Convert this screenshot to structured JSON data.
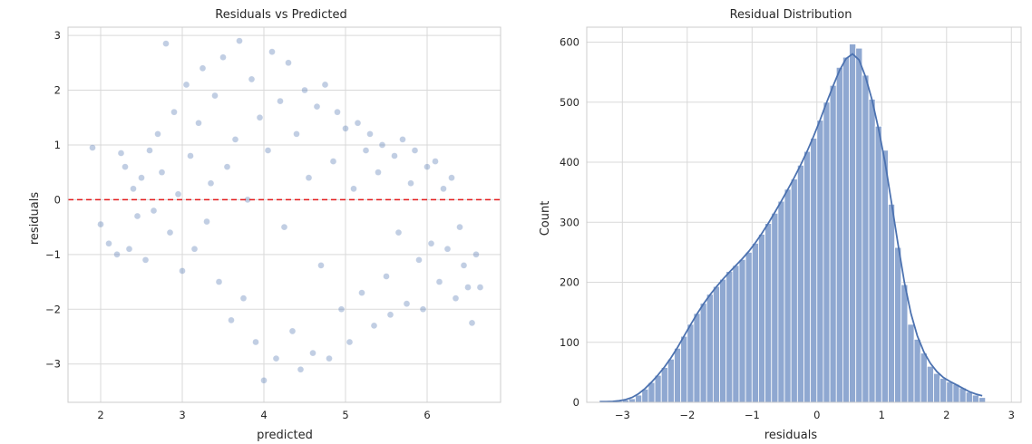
{
  "chart_data": [
    {
      "type": "scatter",
      "title": "Residuals vs Predicted",
      "xlabel": "predicted",
      "ylabel": "residuals",
      "xlim": [
        1.6,
        6.9
      ],
      "ylim": [
        -3.7,
        3.15
      ],
      "xticks": [
        2,
        3,
        4,
        5,
        6
      ],
      "yticks": [
        -3,
        -2,
        -1,
        0,
        1,
        2,
        3
      ],
      "xtick_labels": [
        "2",
        "3",
        "4",
        "5",
        "6"
      ],
      "ytick_labels": [
        "−3",
        "−2",
        "−1",
        "0",
        "1",
        "2",
        "3"
      ],
      "reference_line": {
        "y": 0,
        "style": "dashed",
        "color": "#e31a1c"
      },
      "point_color": "#4c72b0",
      "grid": true,
      "points": [
        [
          1.9,
          0.95
        ],
        [
          2.0,
          -0.45
        ],
        [
          2.1,
          -0.8
        ],
        [
          2.2,
          -1.0
        ],
        [
          2.25,
          0.85
        ],
        [
          2.3,
          0.6
        ],
        [
          2.35,
          -0.9
        ],
        [
          2.4,
          0.2
        ],
        [
          2.45,
          -0.3
        ],
        [
          2.5,
          0.4
        ],
        [
          2.55,
          -1.1
        ],
        [
          2.6,
          0.9
        ],
        [
          2.65,
          -0.2
        ],
        [
          2.7,
          1.2
        ],
        [
          2.75,
          0.5
        ],
        [
          2.8,
          2.85
        ],
        [
          2.85,
          -0.6
        ],
        [
          2.9,
          1.6
        ],
        [
          2.95,
          0.1
        ],
        [
          3.0,
          -1.3
        ],
        [
          3.05,
          2.1
        ],
        [
          3.1,
          0.8
        ],
        [
          3.15,
          -0.9
        ],
        [
          3.2,
          1.4
        ],
        [
          3.25,
          2.4
        ],
        [
          3.3,
          -0.4
        ],
        [
          3.35,
          0.3
        ],
        [
          3.4,
          1.9
        ],
        [
          3.45,
          -1.5
        ],
        [
          3.5,
          2.6
        ],
        [
          3.55,
          0.6
        ],
        [
          3.6,
          -2.2
        ],
        [
          3.65,
          1.1
        ],
        [
          3.7,
          2.9
        ],
        [
          3.75,
          -1.8
        ],
        [
          3.8,
          0.0
        ],
        [
          3.85,
          2.2
        ],
        [
          3.9,
          -2.6
        ],
        [
          3.95,
          1.5
        ],
        [
          4.0,
          -3.3
        ],
        [
          4.05,
          0.9
        ],
        [
          4.1,
          2.7
        ],
        [
          4.15,
          -2.9
        ],
        [
          4.2,
          1.8
        ],
        [
          4.25,
          -0.5
        ],
        [
          4.3,
          2.5
        ],
        [
          4.35,
          -2.4
        ],
        [
          4.4,
          1.2
        ],
        [
          4.45,
          -3.1
        ],
        [
          4.5,
          2.0
        ],
        [
          4.55,
          0.4
        ],
        [
          4.6,
          -2.8
        ],
        [
          4.65,
          1.7
        ],
        [
          4.7,
          -1.2
        ],
        [
          4.75,
          2.1
        ],
        [
          4.8,
          -2.9
        ],
        [
          4.85,
          0.7
        ],
        [
          4.9,
          1.6
        ],
        [
          4.95,
          -2.0
        ],
        [
          5.0,
          1.3
        ],
        [
          5.05,
          -2.6
        ],
        [
          5.1,
          0.2
        ],
        [
          5.15,
          1.4
        ],
        [
          5.2,
          -1.7
        ],
        [
          5.25,
          0.9
        ],
        [
          5.3,
          1.2
        ],
        [
          5.35,
          -2.3
        ],
        [
          5.4,
          0.5
        ],
        [
          5.45,
          1.0
        ],
        [
          5.5,
          -1.4
        ],
        [
          5.55,
          -2.1
        ],
        [
          5.6,
          0.8
        ],
        [
          5.65,
          -0.6
        ],
        [
          5.7,
          1.1
        ],
        [
          5.75,
          -1.9
        ],
        [
          5.8,
          0.3
        ],
        [
          5.85,
          0.9
        ],
        [
          5.9,
          -1.1
        ],
        [
          5.95,
          -2.0
        ],
        [
          6.0,
          0.6
        ],
        [
          6.05,
          -0.8
        ],
        [
          6.1,
          0.7
        ],
        [
          6.15,
          -1.5
        ],
        [
          6.2,
          0.2
        ],
        [
          6.25,
          -0.9
        ],
        [
          6.3,
          0.4
        ],
        [
          6.35,
          -1.8
        ],
        [
          6.4,
          -0.5
        ],
        [
          6.45,
          -1.2
        ],
        [
          6.5,
          -1.6
        ],
        [
          6.55,
          -2.25
        ],
        [
          6.6,
          -1.0
        ],
        [
          6.65,
          -1.6
        ]
      ]
    },
    {
      "type": "bar",
      "subtype": "histogram",
      "title": "Residual Distribution",
      "xlabel": "residuals",
      "ylabel": "Count",
      "xlim": [
        -3.55,
        3.15
      ],
      "ylim": [
        0,
        625
      ],
      "xticks": [
        -3,
        -2,
        -1,
        0,
        1,
        2,
        3
      ],
      "yticks": [
        0,
        100,
        200,
        300,
        400,
        500,
        600
      ],
      "xtick_labels": [
        "−3",
        "−2",
        "−1",
        "0",
        "1",
        "2",
        "3"
      ],
      "ytick_labels": [
        "0",
        "100",
        "200",
        "300",
        "400",
        "500",
        "600"
      ],
      "bin_start": -3.4,
      "bin_width": 0.1,
      "bar_color": "#8fa8d1",
      "line_color": "#4c72b0",
      "grid": true,
      "counts": [
        1,
        1,
        1,
        2,
        4,
        6,
        12,
        22,
        33,
        45,
        58,
        72,
        90,
        110,
        130,
        148,
        165,
        180,
        193,
        205,
        218,
        228,
        238,
        250,
        265,
        280,
        298,
        315,
        335,
        355,
        372,
        395,
        418,
        440,
        470,
        500,
        528,
        558,
        575,
        597,
        590,
        545,
        505,
        460,
        420,
        330,
        258,
        196,
        130,
        105,
        82,
        60,
        48,
        40,
        34,
        30,
        24,
        17,
        12,
        8
      ]
    }
  ]
}
